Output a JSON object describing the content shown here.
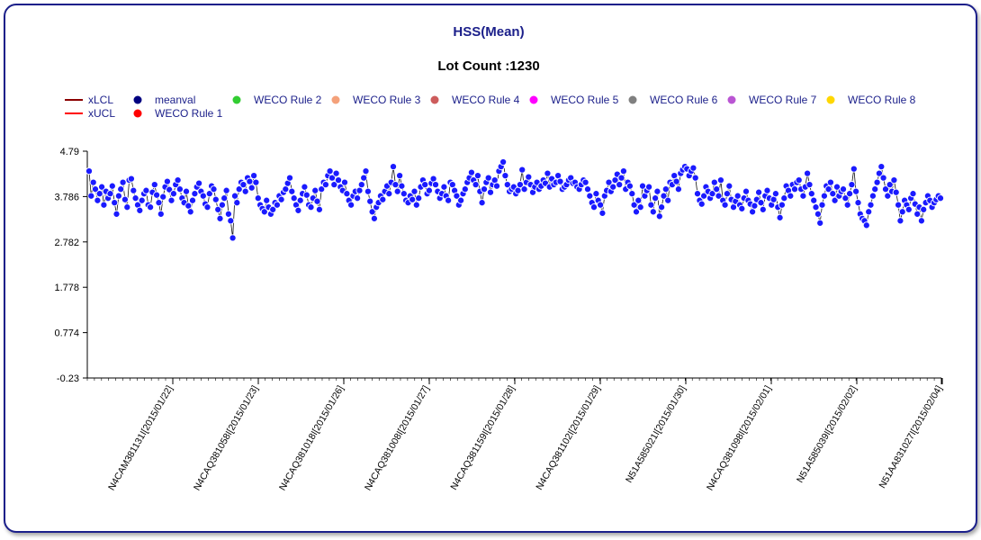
{
  "chart_data": {
    "type": "scatter",
    "title": "HSS(Mean)",
    "subtitle": "Lot Count :1230",
    "xlabel": "",
    "ylabel": "",
    "ylim": [
      -0.23,
      4.79
    ],
    "y_ticks": [
      "4.79",
      "3.786",
      "2.782",
      "1.778",
      "0.774",
      "-0.23"
    ],
    "x_tick_labels": [
      "N4CAM381131I[2015/01/22]",
      "N4CAQ381058I[2015/01/23]",
      "N4CAQ381018I[2015/01/26]",
      "N4CAQ381008I[2015/01/27]",
      "N4CAQ381159I[2015/01/28]",
      "N4CAQ381102I[2015/01/29]",
      "N51A585021I[2015/01/30]",
      "N4CAQ381098I[2015/02/01]",
      "N51A585039I[2015/02/02]",
      "N51AA831027I[2015/02/04]"
    ],
    "legend": [
      {
        "label": "xLCL",
        "color": "#8b0000",
        "marker": "line"
      },
      {
        "label": "xUCL",
        "color": "#ff0000",
        "marker": "line"
      },
      {
        "label": "meanval",
        "color": "#000080",
        "marker": "dot"
      },
      {
        "label": "WECO Rule 1",
        "color": "#ff0000",
        "marker": "dot"
      },
      {
        "label": "WECO Rule 2",
        "color": "#32cd32",
        "marker": "dot"
      },
      {
        "label": "WECO Rule 3",
        "color": "#f4a17a",
        "marker": "dot"
      },
      {
        "label": "WECO Rule 4",
        "color": "#cd5c5c",
        "marker": "dot"
      },
      {
        "label": "WECO Rule 5",
        "color": "#ff00ff",
        "marker": "dot"
      },
      {
        "label": "WECO Rule 6",
        "color": "#808080",
        "marker": "dot"
      },
      {
        "label": "WECO Rule 7",
        "color": "#ba55d3",
        "marker": "dot"
      },
      {
        "label": "WECO Rule 8",
        "color": "#ffd700",
        "marker": "dot"
      }
    ],
    "legend_placement": "top-left",
    "grid": false,
    "series": [
      {
        "name": "meanval",
        "color": "#1a1aff",
        "values": [
          4.35,
          3.8,
          4.1,
          3.95,
          3.7,
          3.85,
          4.0,
          3.6,
          3.9,
          3.75,
          3.85,
          4.02,
          3.65,
          3.4,
          3.8,
          3.95,
          4.1,
          3.72,
          3.55,
          4.15,
          4.18,
          3.92,
          3.75,
          3.6,
          3.48,
          3.7,
          3.85,
          3.92,
          3.6,
          3.55,
          3.88,
          4.05,
          3.82,
          3.65,
          3.4,
          3.78,
          4.0,
          4.12,
          3.94,
          3.7,
          3.85,
          4.05,
          4.15,
          3.95,
          3.75,
          3.65,
          3.9,
          3.58,
          3.45,
          3.7,
          3.85,
          4.0,
          4.08,
          3.9,
          3.8,
          3.62,
          3.55,
          3.85,
          4.02,
          3.95,
          3.72,
          3.5,
          3.3,
          3.6,
          3.75,
          3.92,
          3.4,
          3.25,
          2.87,
          3.8,
          3.65,
          3.95,
          4.1,
          4.05,
          3.9,
          4.2,
          4.12,
          3.98,
          4.25,
          4.1,
          3.75,
          3.6,
          3.52,
          3.45,
          3.7,
          3.55,
          3.4,
          3.5,
          3.65,
          3.6,
          3.8,
          3.72,
          3.88,
          3.95,
          4.08,
          4.2,
          3.9,
          3.75,
          3.6,
          3.48,
          3.7,
          3.85,
          4.0,
          3.82,
          3.6,
          3.55,
          3.75,
          3.92,
          3.68,
          3.5,
          3.95,
          4.1,
          4.05,
          4.25,
          4.35,
          4.2,
          4.05,
          4.3,
          4.15,
          4.0,
          3.92,
          4.1,
          3.85,
          3.7,
          3.6,
          3.8,
          3.9,
          3.75,
          3.92,
          4.05,
          4.2,
          4.35,
          3.9,
          3.68,
          3.45,
          3.3,
          3.55,
          3.65,
          3.8,
          3.72,
          3.9,
          4.02,
          3.85,
          4.1,
          4.45,
          4.05,
          3.9,
          4.25,
          4.02,
          3.85,
          3.7,
          3.65,
          3.8,
          3.72,
          3.9,
          3.6,
          3.75,
          4.0,
          4.15,
          4.05,
          3.85,
          3.92,
          4.08,
          4.18,
          4.05,
          3.9,
          3.75,
          3.85,
          4.0,
          3.8,
          3.7,
          4.1,
          4.05,
          3.92,
          3.8,
          3.6,
          3.7,
          3.85,
          3.95,
          4.1,
          4.2,
          4.32,
          4.15,
          4.05,
          4.25,
          3.9,
          3.65,
          3.95,
          4.1,
          4.2,
          3.88,
          4.05,
          4.15,
          4.02,
          4.35,
          4.45,
          4.55,
          4.25,
          4.05,
          3.9,
          3.95,
          4.0,
          3.85,
          3.92,
          4.05,
          4.38,
          3.95,
          4.1,
          4.22,
          4.05,
          3.88,
          4.0,
          4.1,
          3.95,
          4.02,
          4.15,
          4.08,
          4.3,
          4.0,
          4.18,
          4.05,
          4.1,
          4.25,
          4.12,
          3.95,
          4.0,
          4.05,
          4.15,
          4.2,
          4.08,
          4.1,
          4.0,
          3.95,
          4.05,
          4.15,
          4.1,
          3.95,
          3.8,
          3.65,
          3.55,
          3.85,
          3.7,
          3.6,
          3.42,
          3.8,
          3.92,
          4.1,
          3.9,
          4.0,
          4.15,
          4.28,
          4.05,
          4.2,
          4.35,
          3.95,
          4.1,
          4.02,
          3.85,
          3.6,
          3.45,
          3.7,
          3.55,
          4.02,
          3.8,
          3.92,
          4.0,
          3.6,
          3.45,
          3.75,
          3.9,
          3.35,
          3.55,
          3.8,
          3.95,
          3.7,
          4.1,
          4.05,
          4.25,
          4.12,
          3.95,
          4.3,
          4.38,
          4.45,
          4.4,
          4.25,
          4.35,
          4.42,
          4.2,
          3.85,
          3.7,
          3.62,
          3.8,
          4.0,
          3.9,
          3.75,
          3.85,
          4.1,
          3.95,
          3.8,
          4.15,
          3.7,
          3.6,
          3.85,
          4.02,
          3.72,
          3.55,
          3.68,
          3.8,
          3.6,
          3.52,
          3.75,
          3.9,
          3.7,
          3.62,
          3.45,
          3.58,
          3.72,
          3.88,
          3.65,
          3.5,
          3.8,
          3.92,
          3.75,
          3.6,
          3.72,
          3.85,
          3.55,
          3.32,
          3.6,
          3.75,
          4.02,
          3.92,
          3.8,
          4.05,
          3.95,
          4.1,
          4.15,
          3.95,
          3.8,
          4.0,
          4.3,
          4.05,
          3.85,
          3.7,
          3.55,
          3.4,
          3.2,
          3.6,
          3.8,
          4.02,
          3.95,
          4.1,
          3.85,
          3.7,
          4.0,
          3.8,
          3.9,
          3.95,
          3.75,
          3.6,
          3.85,
          4.05,
          4.4,
          3.9,
          3.65,
          3.4,
          3.3,
          3.25,
          3.15,
          3.45,
          3.6,
          3.8,
          3.95,
          4.1,
          4.3,
          4.45,
          4.2,
          3.95,
          3.8,
          4.05,
          3.9,
          4.15,
          3.88,
          3.6,
          3.25,
          3.45,
          3.7,
          3.6,
          3.5,
          3.75,
          3.85,
          3.62,
          3.4,
          3.55,
          3.25,
          3.5,
          3.65,
          3.8,
          3.7,
          3.55,
          3.65,
          3.72,
          3.8,
          3.75
        ]
      }
    ]
  }
}
